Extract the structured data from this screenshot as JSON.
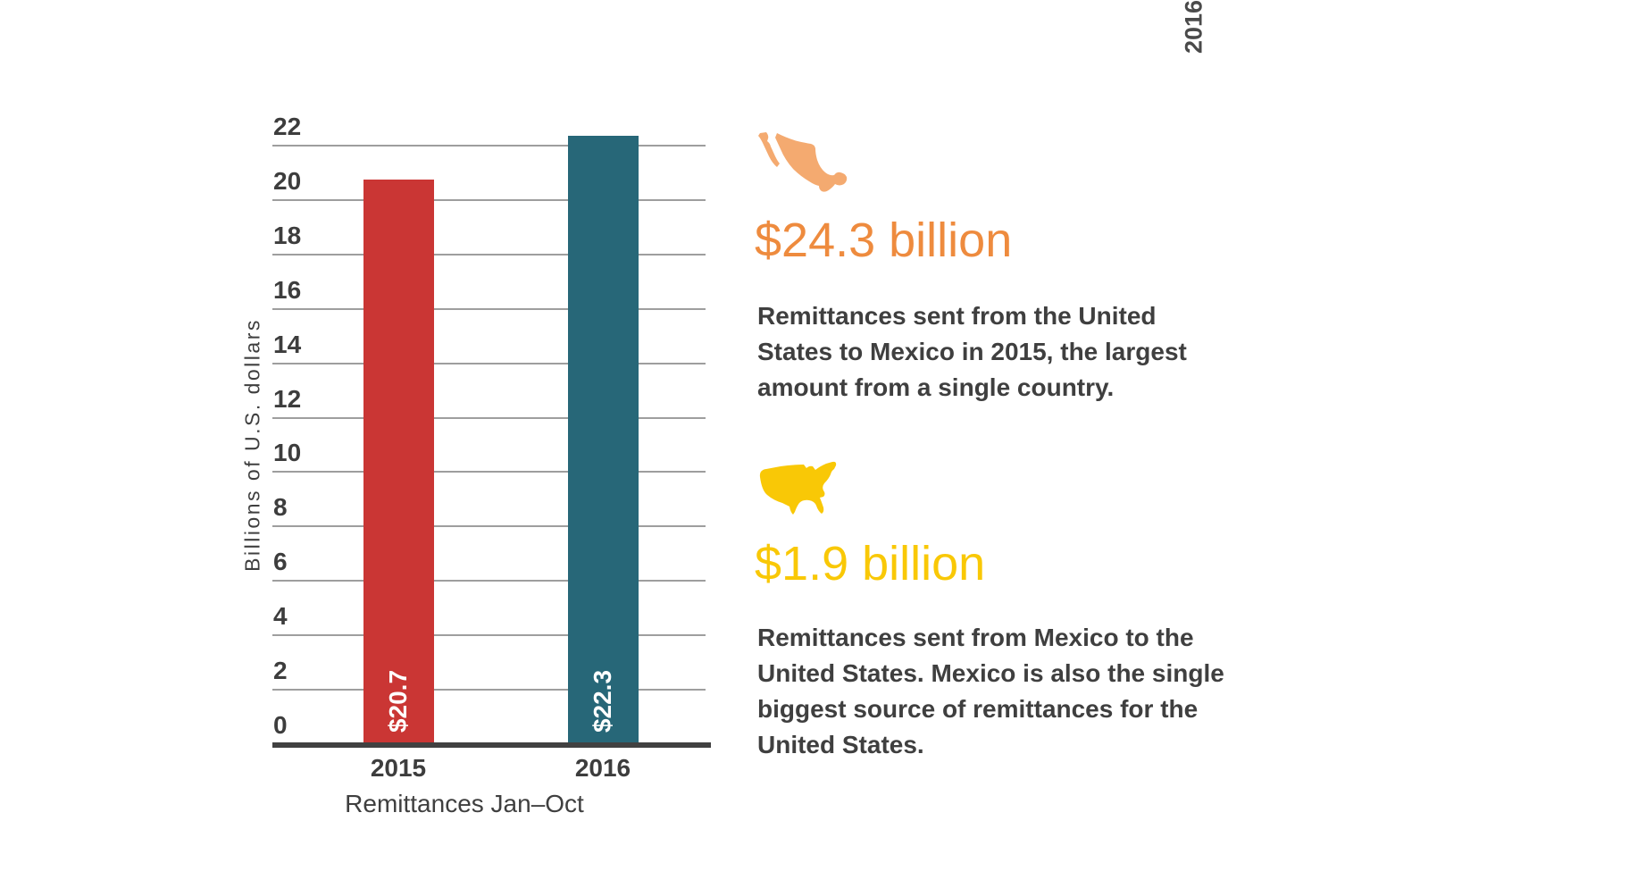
{
  "corner_label": "2016",
  "colors": {
    "bar_2015": "#ca3634",
    "bar_2016": "#276778",
    "grid": "#9e9e9e",
    "axis": "#414141",
    "text": "#3f3f3f"
  },
  "chart_data": {
    "type": "bar",
    "title": "",
    "categories": [
      "2015",
      "2016"
    ],
    "values": [
      20.7,
      22.3
    ],
    "bar_labels": [
      "$20.7",
      "$22.3"
    ],
    "bar_colors": [
      "#ca3634",
      "#276778"
    ],
    "xlabel": "Remittances Jan–Oct",
    "ylabel": "Billions of U.S. dollars",
    "ylim": [
      0,
      22
    ],
    "ytick_step": 2,
    "grid": true,
    "legend": "none"
  },
  "callouts": [
    {
      "icon": "mexico-map-icon",
      "icon_color": "#f4aa70",
      "headline": "$24.3 billion",
      "headline_color": "#ee8b3e",
      "body_lines": [
        "Remittances sent from the United",
        "States to Mexico in 2015, the largest",
        "amount from a single country."
      ]
    },
    {
      "icon": "usa-map-icon",
      "icon_color": "#f9c806",
      "headline": "$1.9 billion",
      "headline_color": "#f9c806",
      "body_lines": [
        "Remittances sent from Mexico to the",
        "United States. Mexico is also the single",
        "biggest source of remittances for the",
        "United States."
      ]
    }
  ]
}
